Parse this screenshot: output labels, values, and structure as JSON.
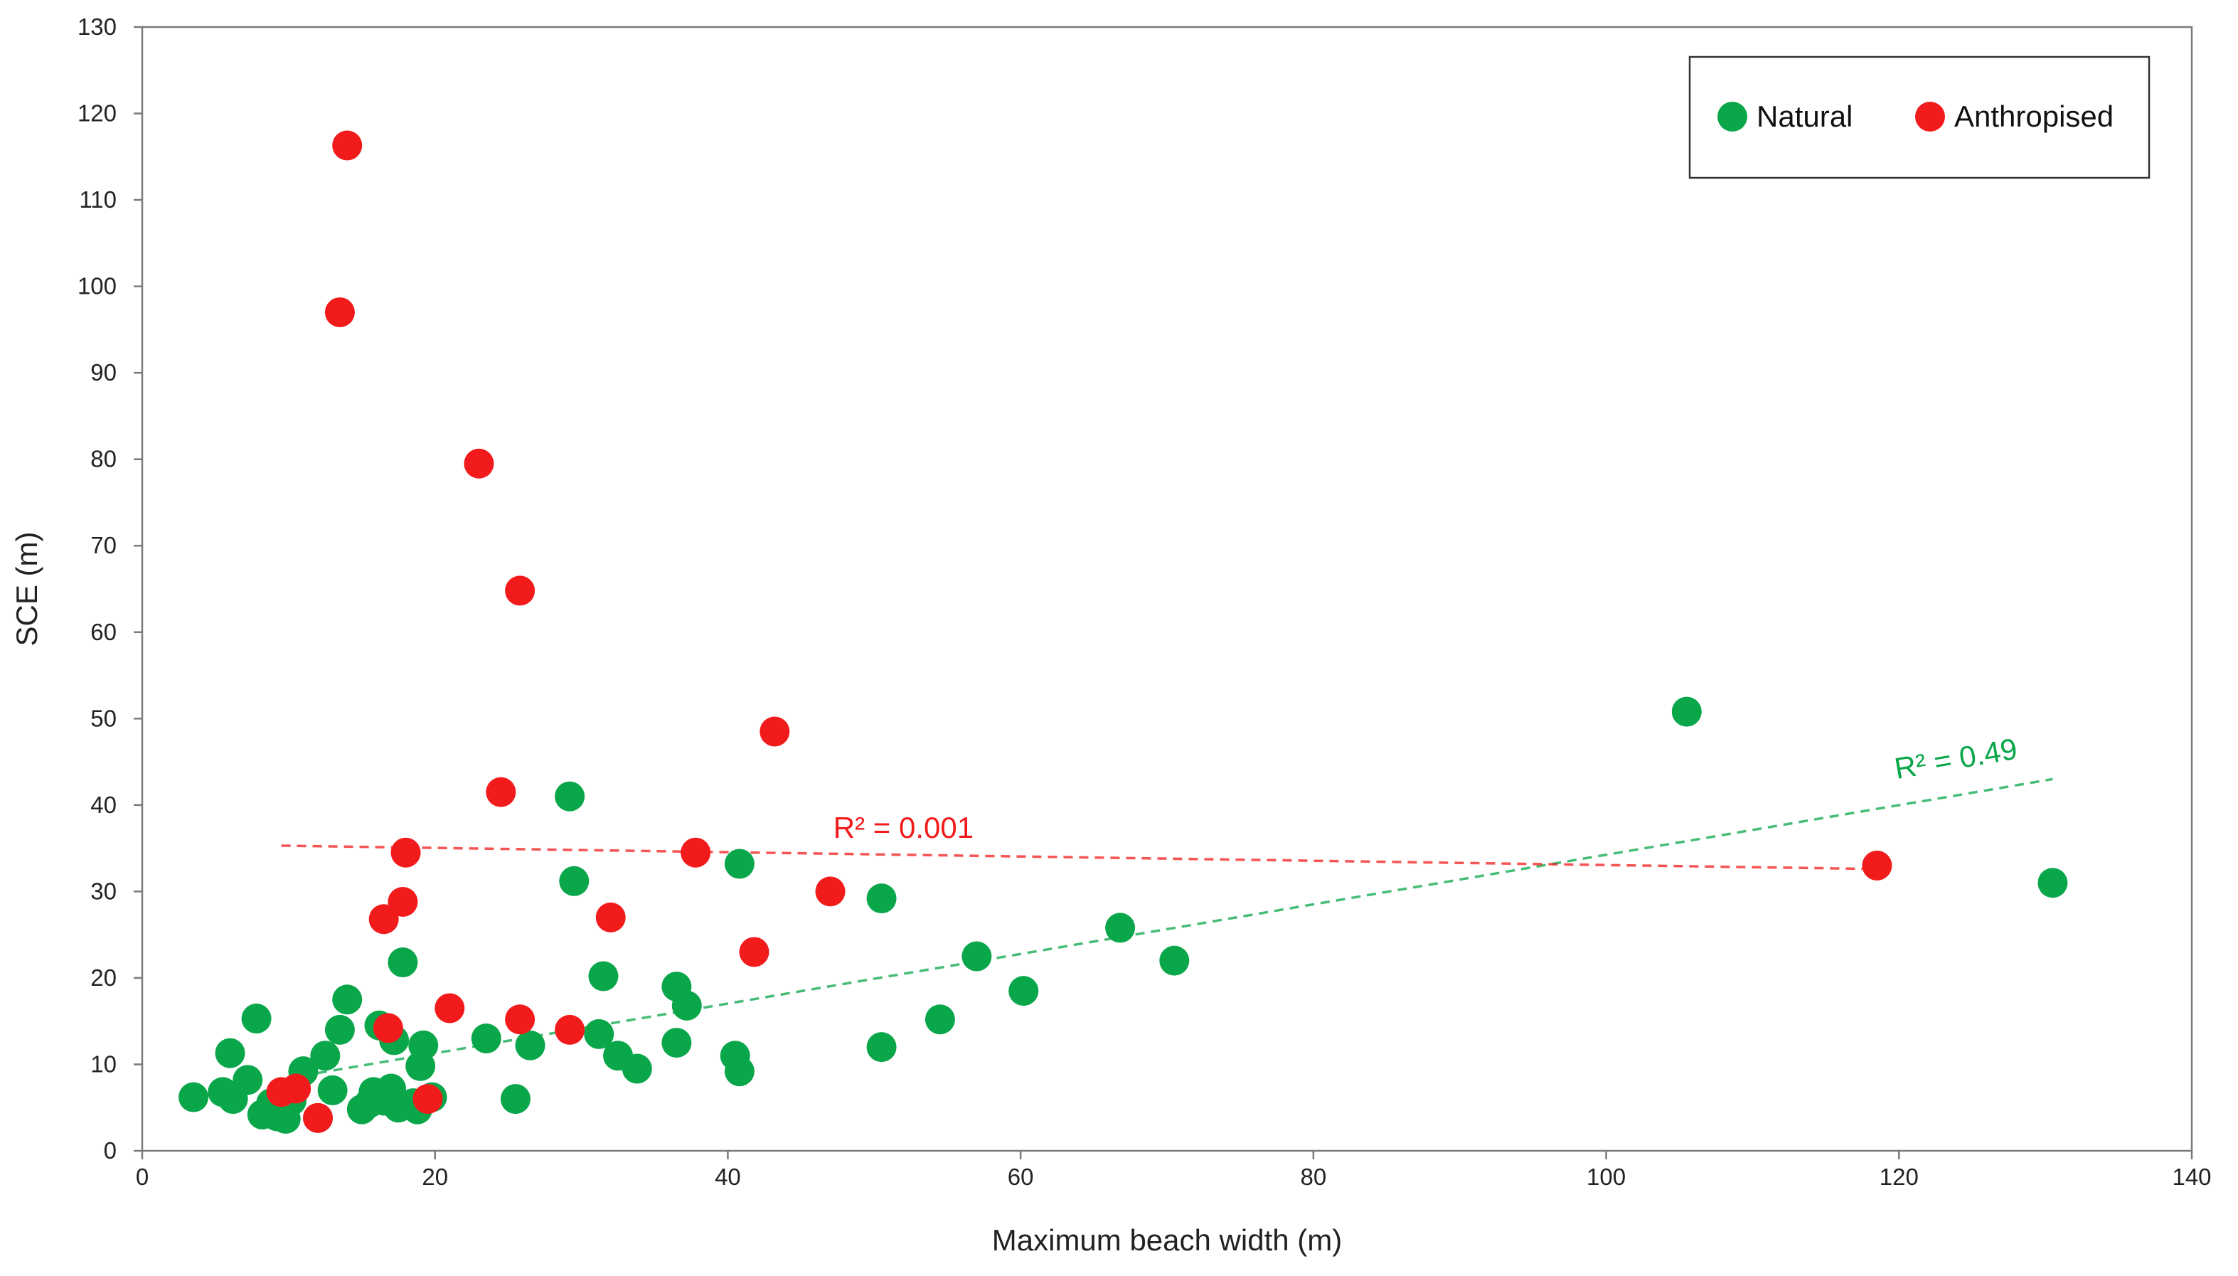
{
  "chart_data": {
    "type": "scatter",
    "xlabel": "Maximum beach width (m)",
    "ylabel": "SCE (m)",
    "xlim": [
      0,
      140
    ],
    "ylim": [
      0,
      130
    ],
    "xticks": [
      0,
      20,
      40,
      60,
      80,
      100,
      120,
      140
    ],
    "yticks": [
      0,
      10,
      20,
      30,
      40,
      50,
      60,
      70,
      80,
      90,
      100,
      110,
      120,
      130
    ],
    "grid": false,
    "legend_position": "top-right",
    "series": [
      {
        "name": "Natural",
        "color": "#0aa64a",
        "points": [
          [
            3.5,
            6.2
          ],
          [
            5.5,
            6.8
          ],
          [
            6.0,
            11.3
          ],
          [
            6.2,
            6.0
          ],
          [
            7.2,
            8.2
          ],
          [
            7.8,
            15.3
          ],
          [
            8.2,
            4.2
          ],
          [
            8.8,
            5.5
          ],
          [
            9.2,
            4.0
          ],
          [
            9.8,
            3.7
          ],
          [
            10.2,
            5.8
          ],
          [
            11.0,
            9.2
          ],
          [
            12.0,
            3.8
          ],
          [
            12.5,
            11.0
          ],
          [
            13.0,
            7.0
          ],
          [
            13.5,
            14.0
          ],
          [
            14.0,
            17.5
          ],
          [
            15.0,
            4.8
          ],
          [
            15.5,
            5.5
          ],
          [
            15.8,
            6.8
          ],
          [
            16.2,
            14.5
          ],
          [
            16.5,
            5.8
          ],
          [
            17.0,
            7.2
          ],
          [
            17.2,
            12.8
          ],
          [
            17.5,
            5.0
          ],
          [
            17.8,
            21.8
          ],
          [
            18.5,
            5.5
          ],
          [
            18.8,
            4.8
          ],
          [
            19.0,
            9.8
          ],
          [
            19.2,
            12.2
          ],
          [
            19.8,
            6.2
          ],
          [
            23.5,
            13.0
          ],
          [
            25.5,
            6.0
          ],
          [
            26.5,
            12.2
          ],
          [
            29.2,
            41.0
          ],
          [
            29.5,
            31.2
          ],
          [
            31.2,
            13.5
          ],
          [
            31.5,
            20.2
          ],
          [
            32.5,
            11.0
          ],
          [
            33.8,
            9.5
          ],
          [
            36.5,
            19.0
          ],
          [
            36.5,
            12.5
          ],
          [
            37.2,
            16.8
          ],
          [
            40.5,
            11.0
          ],
          [
            40.8,
            9.2
          ],
          [
            40.8,
            33.2
          ],
          [
            50.5,
            12.0
          ],
          [
            50.5,
            29.2
          ],
          [
            54.5,
            15.2
          ],
          [
            57.0,
            22.5
          ],
          [
            60.2,
            18.5
          ],
          [
            66.8,
            25.8
          ],
          [
            70.5,
            22.0
          ],
          [
            105.5,
            50.8
          ],
          [
            130.5,
            31.0
          ]
        ],
        "trendline": {
          "type": "linear",
          "from": [
            12.0,
            9.0
          ],
          "to": [
            130.5,
            43.0
          ],
          "r2_label": "R² = 0.49"
        }
      },
      {
        "name": "Anthropised",
        "color": "#f21b1b",
        "points": [
          [
            9.5,
            6.8
          ],
          [
            10.5,
            7.2
          ],
          [
            12.0,
            3.8
          ],
          [
            13.5,
            97.0
          ],
          [
            14.0,
            116.3
          ],
          [
            16.5,
            26.8
          ],
          [
            16.8,
            14.2
          ],
          [
            17.8,
            28.8
          ],
          [
            18.0,
            34.5
          ],
          [
            19.5,
            6.0
          ],
          [
            21.0,
            16.5
          ],
          [
            23.0,
            79.5
          ],
          [
            24.5,
            41.5
          ],
          [
            25.8,
            64.8
          ],
          [
            25.8,
            15.2
          ],
          [
            29.2,
            14.0
          ],
          [
            32.0,
            27.0
          ],
          [
            37.8,
            34.5
          ],
          [
            41.8,
            23.0
          ],
          [
            43.2,
            48.5
          ],
          [
            47.0,
            30.0
          ],
          [
            118.5,
            33.0
          ]
        ],
        "trendline": {
          "type": "linear",
          "from": [
            9.5,
            35.3
          ],
          "to": [
            118.5,
            32.6
          ],
          "r2_label": "R² = 0.001"
        }
      }
    ],
    "annotations": [
      {
        "text": "R² = 0.001",
        "color": "#f21b1b",
        "series": "Anthropised"
      },
      {
        "text": "R² = 0.49",
        "color": "#0aa64a",
        "series": "Natural"
      }
    ]
  }
}
